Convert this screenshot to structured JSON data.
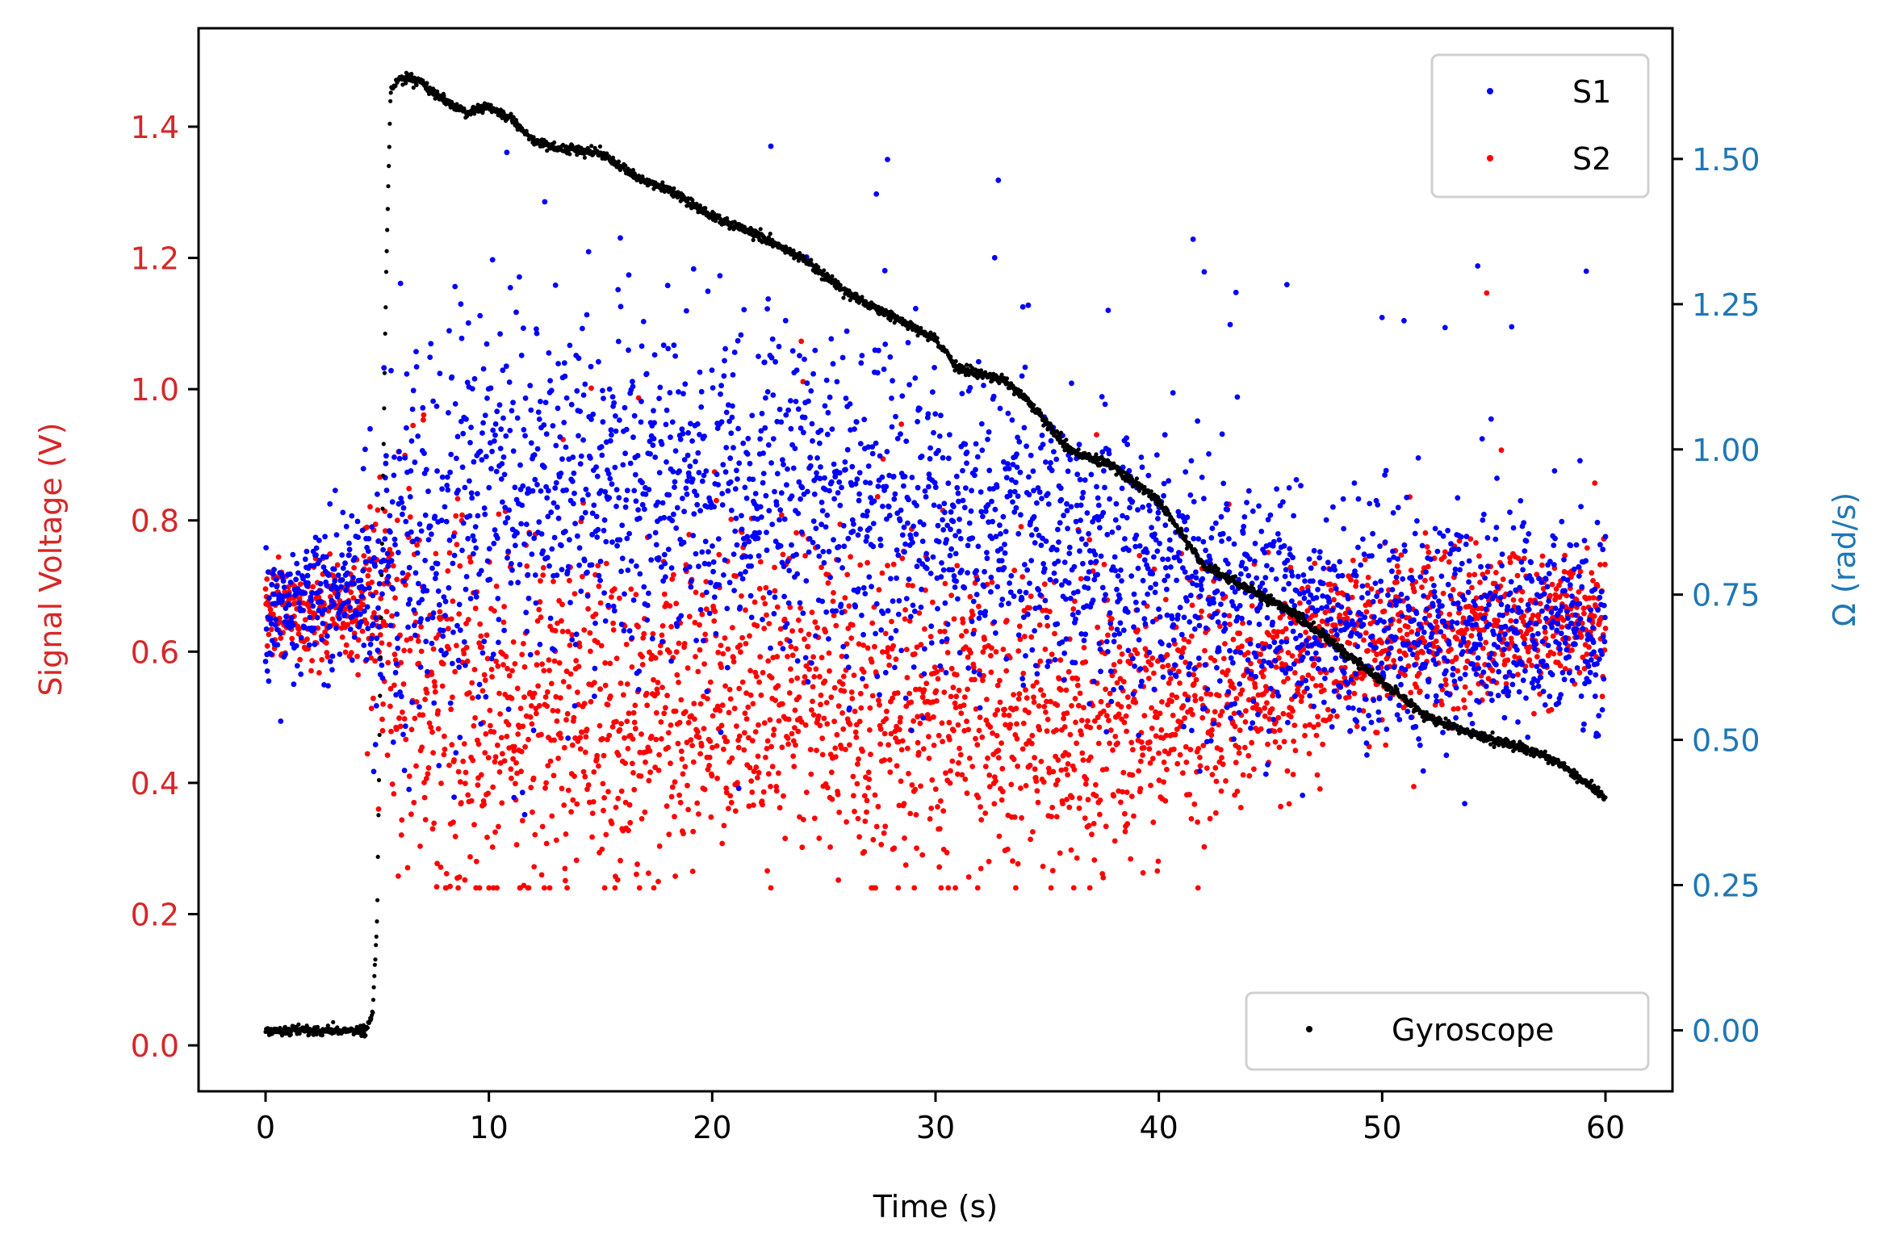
{
  "chart_data": {
    "type": "scatter",
    "xlabel": "Time (s)",
    "ylabel_left": "Signal Voltage (V)",
    "ylabel_right": "Ω (rad/s)",
    "xlim": [
      -3,
      63
    ],
    "ylim_left": [
      -0.07,
      1.55
    ],
    "ylim_right": [
      -0.105,
      1.725
    ],
    "xticks": [
      "0",
      "10",
      "20",
      "30",
      "40",
      "50",
      "60"
    ],
    "yticks_left": [
      "0.0",
      "0.2",
      "0.4",
      "0.6",
      "0.8",
      "1.0",
      "1.2",
      "1.4"
    ],
    "yticks_right": [
      "0.00",
      "0.25",
      "0.50",
      "0.75",
      "1.00",
      "1.25",
      "1.50"
    ],
    "grid": false,
    "colors": {
      "s1": "#0000ff",
      "s2": "#ff0000",
      "gyro": "#000000",
      "left_axis": "#d62728",
      "right_axis": "#1f77b4"
    },
    "legend_upper": {
      "placement": "upper-right",
      "entries": [
        "S1",
        "S2"
      ]
    },
    "legend_lower": {
      "placement": "lower-right",
      "entries": [
        "Gyroscope"
      ]
    },
    "series": [
      {
        "name": "S1",
        "axis": "left",
        "color": "#0000ff",
        "envelope": {
          "t": [
            0,
            2,
            4,
            5,
            6,
            10,
            15,
            20,
            25,
            30,
            35,
            40,
            45,
            50,
            55,
            60
          ],
          "center": [
            0.63,
            0.68,
            0.7,
            0.7,
            0.74,
            0.82,
            0.84,
            0.86,
            0.84,
            0.8,
            0.78,
            0.72,
            0.66,
            0.64,
            0.64,
            0.64
          ],
          "spread": [
            0.07,
            0.07,
            0.07,
            0.15,
            0.22,
            0.2,
            0.18,
            0.17,
            0.17,
            0.16,
            0.15,
            0.14,
            0.13,
            0.12,
            0.12,
            0.09
          ]
        }
      },
      {
        "name": "S2",
        "axis": "left",
        "color": "#ff0000",
        "envelope": {
          "t": [
            0,
            2,
            4,
            5,
            6,
            10,
            15,
            20,
            25,
            30,
            35,
            40,
            45,
            50,
            55,
            60
          ],
          "center": [
            0.67,
            0.66,
            0.67,
            0.66,
            0.6,
            0.48,
            0.5,
            0.54,
            0.52,
            0.5,
            0.48,
            0.5,
            0.56,
            0.62,
            0.64,
            0.66
          ],
          "spread": [
            0.05,
            0.05,
            0.05,
            0.15,
            0.2,
            0.19,
            0.18,
            0.17,
            0.16,
            0.16,
            0.15,
            0.13,
            0.1,
            0.09,
            0.08,
            0.07
          ]
        }
      },
      {
        "name": "Gyroscope",
        "axis": "right",
        "color": "#000000",
        "t": [
          0,
          4.5,
          4.8,
          5.0,
          5.2,
          5.4,
          5.6,
          6.0,
          7.0,
          8.0,
          9.0,
          10.0,
          11.0,
          12.0,
          13.0,
          15.0,
          17.0,
          18.0,
          20.0,
          22.0,
          24.0,
          26.0,
          28.0,
          30.0,
          31.0,
          32.0,
          33.0,
          34.0,
          36.0,
          38.0,
          40.0,
          42.0,
          44.0,
          46.0,
          48.0,
          50.0,
          52.0,
          54.0,
          56.0,
          58.0,
          60.0
        ],
        "omega": [
          0.0,
          0.0,
          0.03,
          0.2,
          0.8,
          1.3,
          1.62,
          1.64,
          1.63,
          1.6,
          1.58,
          1.59,
          1.57,
          1.53,
          1.52,
          1.51,
          1.46,
          1.45,
          1.4,
          1.37,
          1.33,
          1.27,
          1.23,
          1.19,
          1.14,
          1.13,
          1.12,
          1.09,
          1.0,
          0.97,
          0.91,
          0.8,
          0.76,
          0.72,
          0.66,
          0.6,
          0.54,
          0.51,
          0.49,
          0.46,
          0.4
        ]
      }
    ]
  }
}
